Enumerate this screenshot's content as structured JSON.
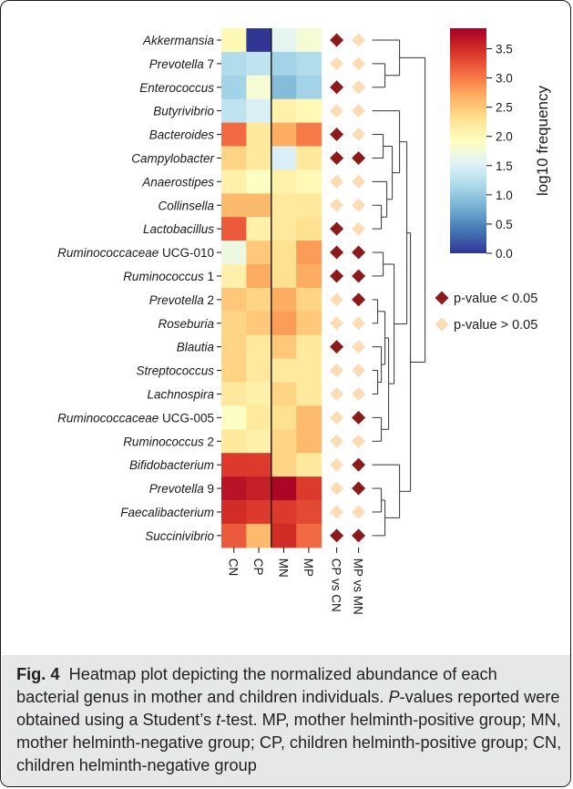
{
  "chart_data": {
    "type": "heatmap",
    "rows": [
      {
        "pre": "",
        "it": "Akkermansia",
        "post": ""
      },
      {
        "pre": "",
        "it": "Prevotella",
        "post": " 7"
      },
      {
        "pre": "",
        "it": "Enterococcus",
        "post": ""
      },
      {
        "pre": "",
        "it": "Butyrivibrio",
        "post": ""
      },
      {
        "pre": "",
        "it": "Bacteroides",
        "post": ""
      },
      {
        "pre": "",
        "it": "Campylobacter",
        "post": ""
      },
      {
        "pre": "",
        "it": "Anaerostipes",
        "post": ""
      },
      {
        "pre": "",
        "it": "Collinsella",
        "post": ""
      },
      {
        "pre": "",
        "it": "Lactobacillus",
        "post": ""
      },
      {
        "pre": "",
        "it": "Ruminococcaceae",
        "post": " UCG-010"
      },
      {
        "pre": "",
        "it": "Ruminococcus",
        "post": " 1"
      },
      {
        "pre": "",
        "it": "Prevotella",
        "post": " 2"
      },
      {
        "pre": "",
        "it": "Roseburia",
        "post": ""
      },
      {
        "pre": "",
        "it": "Blautia",
        "post": ""
      },
      {
        "pre": "",
        "it": "Streptococcus",
        "post": ""
      },
      {
        "pre": "",
        "it": "Lachnospira",
        "post": ""
      },
      {
        "pre": "",
        "it": "Ruminococcaceae",
        "post": " UCG-005"
      },
      {
        "pre": "",
        "it": "Ruminococcus",
        "post": " 2"
      },
      {
        "pre": "",
        "it": "Bifidobacterium",
        "post": ""
      },
      {
        "pre": "",
        "it": "Prevotella",
        "post": " 9"
      },
      {
        "pre": "",
        "it": "Faecalibacterium",
        "post": ""
      },
      {
        "pre": "",
        "it": "Succinivibrio",
        "post": ""
      }
    ],
    "columns": [
      "CN",
      "CP",
      "MN",
      "MP"
    ],
    "values": [
      [
        2.0,
        0.0,
        1.6,
        1.8
      ],
      [
        1.2,
        1.3,
        1.1,
        1.2
      ],
      [
        1.1,
        1.8,
        0.9,
        1.1
      ],
      [
        1.3,
        1.5,
        2.1,
        2.0
      ],
      [
        3.1,
        2.2,
        2.7,
        3.0
      ],
      [
        2.4,
        2.2,
        1.5,
        2.2
      ],
      [
        2.1,
        1.9,
        2.1,
        2.0
      ],
      [
        2.6,
        2.6,
        2.2,
        2.2
      ],
      [
        3.2,
        2.1,
        2.2,
        2.3
      ],
      [
        1.7,
        2.5,
        2.3,
        2.8
      ],
      [
        2.1,
        2.7,
        2.3,
        2.7
      ],
      [
        2.5,
        2.4,
        2.7,
        2.4
      ],
      [
        2.4,
        2.5,
        2.8,
        2.5
      ],
      [
        2.4,
        2.2,
        2.5,
        2.2
      ],
      [
        2.4,
        2.2,
        2.2,
        2.2
      ],
      [
        2.2,
        2.1,
        2.4,
        2.2
      ],
      [
        1.9,
        2.2,
        2.3,
        2.6
      ],
      [
        2.2,
        2.1,
        2.4,
        2.6
      ],
      [
        3.4,
        3.4,
        2.4,
        2.2
      ],
      [
        3.7,
        3.6,
        3.8,
        3.4
      ],
      [
        3.5,
        3.4,
        3.4,
        3.3
      ],
      [
        3.2,
        2.6,
        3.5,
        3.1
      ]
    ],
    "significance_columns": [
      "CP vs CN",
      "MP vs MN"
    ],
    "significance": [
      [
        true,
        false
      ],
      [
        false,
        false
      ],
      [
        true,
        false
      ],
      [
        false,
        false
      ],
      [
        true,
        false
      ],
      [
        true,
        true
      ],
      [
        false,
        false
      ],
      [
        false,
        false
      ],
      [
        true,
        false
      ],
      [
        true,
        true
      ],
      [
        true,
        true
      ],
      [
        false,
        true
      ],
      [
        false,
        false
      ],
      [
        true,
        false
      ],
      [
        false,
        false
      ],
      [
        false,
        false
      ],
      [
        false,
        true
      ],
      [
        false,
        false
      ],
      [
        false,
        true
      ],
      [
        false,
        true
      ],
      [
        false,
        false
      ],
      [
        true,
        true
      ]
    ],
    "colorbar": {
      "label": "log10 frequency",
      "ticks": [
        "0.0",
        "0.5",
        "1.0",
        "1.5",
        "2.0",
        "2.5",
        "3.0",
        "3.5"
      ],
      "range": [
        0,
        3.85
      ],
      "colors": [
        "#313695",
        "#4575b4",
        "#74add1",
        "#abd9e9",
        "#e0f3f8",
        "#ffffbf",
        "#fee090",
        "#fdae61",
        "#f46d43",
        "#d73027",
        "#a50026"
      ]
    },
    "legend": {
      "significant": "p-value < 0.05",
      "not_significant": "p-value > 0.05",
      "significant_color": "#8b1a1a",
      "not_significant_color": "#fbdcb4"
    }
  },
  "caption": {
    "fig_label": "Fig. 4",
    "sentence1": "Heatmap plot depicting the normalized abundance of each bacterial genus in mother and children individuals.",
    "p_italic": "P",
    "sentence2_a": "-values reported were obtained using a Student’s ",
    "t_italic": "t",
    "sentence2_b": "-test. MP, mother helminth-positive group; MN, mother helminth-negative group; CP, children helminth-positive group; CN, children helminth-negative group"
  }
}
